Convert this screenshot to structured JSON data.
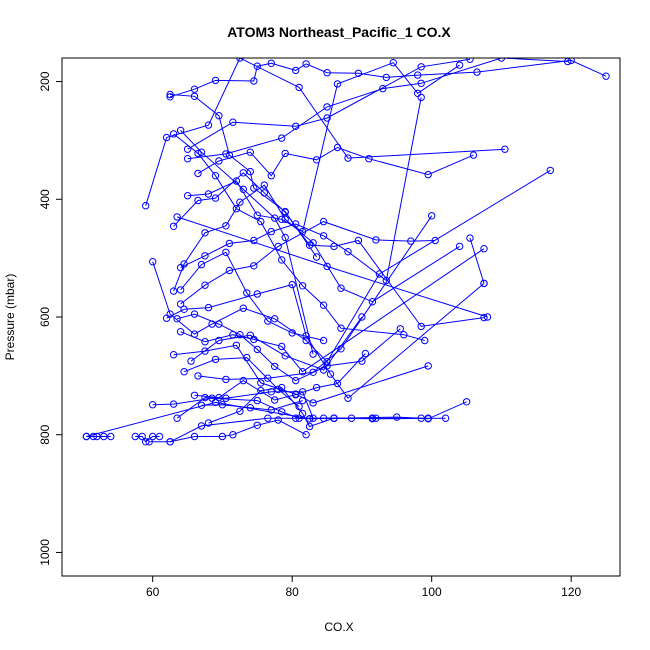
{
  "chart_data": {
    "type": "line",
    "title": "ATOM3 Northeast_Pacific_1 CO.X",
    "xlabel": "CO.X",
    "ylabel": "Pressure (mbar)",
    "xlim": [
      47,
      127
    ],
    "ylim": [
      1040,
      160
    ],
    "y_reversed": true,
    "grid": false,
    "legend": "none",
    "x_ticks": [
      60,
      80,
      100,
      120
    ],
    "y_ticks": [
      200,
      400,
      600,
      800,
      1000
    ],
    "color": "#0000ff",
    "marker": "open-circle",
    "series": [
      {
        "x": [
          50.5,
          51.5,
          52.0,
          53.0,
          54.0
        ],
        "y": [
          803,
          803,
          803,
          803,
          803
        ]
      },
      {
        "x": [
          57.5,
          58.5,
          59.0,
          60.0,
          61.0
        ],
        "y": [
          803,
          803,
          812,
          803,
          803
        ]
      },
      {
        "x": [
          50.5,
          69.0,
          82.5,
          95.0,
          98.5,
          99.5,
          105.0
        ],
        "y": [
          803,
          745,
          773,
          770,
          772,
          773,
          744
        ]
      },
      {
        "x": [
          59.5,
          62.5,
          66.0,
          70.0,
          71.5,
          75.0,
          78.0,
          82.0
        ],
        "y": [
          812,
          812,
          803,
          803,
          800,
          784,
          775,
          800
        ]
      },
      {
        "x": [
          62.5,
          67.0,
          76.5,
          80.5,
          82.5,
          86.0,
          91.5,
          92.0,
          99.5
        ],
        "y": [
          812,
          785,
          772,
          772,
          773,
          772,
          772,
          772,
          772
        ]
      },
      {
        "x": [
          60.0,
          63.0,
          68.5,
          75.0,
          78.5,
          81.0,
          84.5,
          86.0,
          91.5,
          102.0
        ],
        "y": [
          749,
          748,
          738,
          742,
          761,
          772,
          772,
          772,
          773,
          772
        ]
      },
      {
        "x": [
          63.5,
          67.5,
          70.5,
          77.0,
          81.5,
          83.0,
          88.5,
          91.5
        ],
        "y": [
          772,
          737,
          738,
          727,
          727,
          772,
          772,
          772
        ]
      },
      {
        "x": [
          68.0,
          72.5,
          75.5,
          78.5,
          81.5,
          82.5,
          86.0
        ],
        "y": [
          780,
          760,
          725,
          720,
          764,
          786,
          772
        ]
      },
      {
        "x": [
          62.5,
          66.0,
          69.5,
          71.0,
          74.0,
          74.5,
          79.0,
          83.5
        ],
        "y": [
          222,
          225,
          258,
          325,
          353,
          381,
          421,
          498
        ]
      },
      {
        "x": [
          63.5,
          85.0,
          108.0
        ],
        "y": [
          430,
          514,
          600
        ]
      },
      {
        "x": [
          64.0,
          67.0,
          73.0,
          77.5,
          79.0,
          83.0
        ],
        "y": [
          283,
          320,
          383,
          432,
          465,
          663
        ]
      },
      {
        "x": [
          63.0,
          66.5,
          69.0,
          72.0,
          75.5,
          78.5,
          81.5,
          84.5,
          87.0,
          96.0,
          99.0
        ],
        "y": [
          289,
          322,
          360,
          416,
          438,
          503,
          547,
          580,
          619,
          630,
          640
        ]
      },
      {
        "x": [
          65.0,
          71.5,
          80.5,
          85.0,
          98.5,
          105.5
        ],
        "y": [
          315,
          269,
          276,
          262,
          175,
          162
        ]
      },
      {
        "x": [
          59.0,
          62.0,
          68.0,
          72.5,
          81.0,
          88.0,
          110.5
        ],
        "y": [
          411,
          295,
          274,
          160,
          210,
          330,
          315
        ]
      },
      {
        "x": [
          60.0,
          62.5,
          66.0,
          68.5,
          73.0,
          77.5,
          82.0,
          85.0,
          92.5,
          117.0
        ],
        "y": [
          506,
          595,
          629,
          612,
          585,
          603,
          640,
          676,
          527,
          351
        ]
      },
      {
        "x": [
          64.0,
          67.0,
          70.5,
          73.5,
          76.5,
          80.0,
          84.5
        ],
        "y": [
          554,
          511,
          490,
          559,
          607,
          627,
          640
        ]
      },
      {
        "x": [
          63.5,
          66.0,
          69.5,
          72.5,
          75.0,
          77.5,
          80.5,
          85.0,
          90.0,
          95.5
        ],
        "y": [
          603,
          595,
          612,
          630,
          655,
          684,
          708,
          683,
          675,
          620
        ]
      },
      {
        "x": [
          62.0,
          64.5,
          68.0,
          75.0,
          80.0,
          82.0,
          85.5,
          88.0,
          107.5
        ],
        "y": [
          602,
          587,
          584,
          561,
          545,
          632,
          697,
          738,
          543
        ]
      },
      {
        "x": [
          65.5,
          69.5,
          74.0,
          79.0,
          84.5,
          90.0
        ],
        "y": [
          675,
          640,
          631,
          666,
          690,
          600
        ]
      },
      {
        "x": [
          66.5,
          70.5,
          76.5,
          83.0,
          87.0,
          100.0
        ],
        "y": [
          700,
          706,
          704,
          694,
          654,
          428
        ]
      },
      {
        "x": [
          66.0,
          69.5,
          73.0,
          77.5,
          80.5,
          83.5,
          86.5,
          90.5
        ],
        "y": [
          733,
          737,
          708,
          741,
          732,
          720,
          713,
          662
        ]
      },
      {
        "x": [
          64.5,
          69.0,
          73.5,
          78.0,
          81.0
        ],
        "y": [
          693,
          672,
          669,
          723,
          752
        ]
      },
      {
        "x": [
          63.0,
          67.5,
          72.0,
          75.5,
          80.5,
          83.0,
          99.5
        ],
        "y": [
          664,
          658,
          648,
          712,
          731,
          746,
          683
        ]
      },
      {
        "x": [
          67.0,
          70.0,
          74.0,
          77.0,
          81.5
        ],
        "y": [
          750,
          749,
          754,
          758,
          742
        ]
      },
      {
        "x": [
          64.0,
          67.5,
          71.5,
          74.5,
          78.5,
          81.5,
          107.5
        ],
        "y": [
          625,
          642,
          630,
          638,
          650,
          693,
          484
        ]
      },
      {
        "x": [
          105.5,
          107.5
        ],
        "y": [
          466,
          543
        ]
      },
      {
        "x": [
          63.0,
          66.5,
          69.0,
          73.0,
          76.0,
          79.0,
          82.5,
          86.0,
          89.5,
          98.5,
          107.5
        ],
        "y": [
          446,
          402,
          398,
          355,
          389,
          422,
          478,
          480,
          470,
          616,
          601
        ]
      },
      {
        "x": [
          62.5,
          66.0,
          69.0,
          74.5,
          75.0,
          77.0,
          80.5,
          82.0,
          85.0,
          89.5,
          93.5,
          98.0,
          106.5,
          120.0,
          125.0
        ],
        "y": [
          226,
          213,
          198,
          199,
          174,
          169,
          181,
          170,
          185,
          186,
          193,
          189,
          184,
          164,
          191
        ]
      },
      {
        "x": [
          65.0,
          70.5,
          78.5,
          85.0,
          93.0,
          98.5,
          110.0,
          119.5
        ],
        "y": [
          331,
          323,
          296,
          243,
          212,
          203,
          160,
          166
        ]
      },
      {
        "x": [
          66.5,
          69.5,
          74.0,
          77.0,
          79.0,
          83.5,
          86.5,
          91.0,
          99.5,
          106.0
        ],
        "y": [
          356,
          335,
          320,
          360,
          322,
          333,
          312,
          331,
          358,
          325
        ]
      },
      {
        "x": [
          63.0,
          64.5,
          67.5,
          70.5,
          72.5,
          76.0,
          79.0,
          83.0,
          87.0,
          91.5,
          104.0
        ],
        "y": [
          556,
          510,
          457,
          445,
          405,
          376,
          434,
          474,
          551,
          574,
          480
        ]
      },
      {
        "x": [
          64.0,
          67.5,
          71.0,
          74.5,
          77.0,
          80.5,
          84.5,
          88.0,
          93.5,
          98.5
        ],
        "y": [
          516,
          496,
          475,
          470,
          455,
          442,
          462,
          489,
          538,
          227
        ]
      },
      {
        "x": [
          65.0,
          68.0,
          72.0,
          75.0,
          78.5,
          81.5,
          86.5,
          94.5,
          98.0,
          104.0
        ],
        "y": [
          394,
          391,
          369,
          427,
          434,
          455,
          204,
          168,
          220,
          172
        ]
      },
      {
        "x": [
          64.0,
          67.5,
          71.0,
          74.5,
          78.0,
          84.5,
          92.0,
          97.0,
          100.5
        ],
        "y": [
          578,
          546,
          521,
          513,
          480,
          438,
          469,
          471,
          470
        ]
      }
    ]
  }
}
